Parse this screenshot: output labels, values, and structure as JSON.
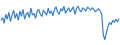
{
  "chart_data": {
    "type": "line",
    "color": "#3a7fc8",
    "tick_labels": false,
    "grid": false,
    "categories": [
      null,
      null,
      null,
      null,
      null,
      null,
      null,
      null,
      null,
      null,
      null,
      null,
      null,
      null,
      null,
      null,
      null,
      null,
      null,
      null,
      null,
      null,
      null,
      null,
      null,
      null,
      null,
      null,
      null,
      null,
      null,
      null,
      null,
      null,
      null,
      null,
      null,
      null,
      null,
      null,
      null,
      null,
      null,
      null,
      null,
      null,
      null,
      null,
      null,
      null,
      null,
      null,
      null,
      null,
      null,
      null,
      null,
      null,
      null,
      null,
      null,
      null,
      null,
      null,
      null,
      null,
      null,
      null,
      null,
      null,
      null,
      null,
      null,
      null,
      null,
      null
    ],
    "values": [
      55,
      62,
      48,
      70,
      58,
      75,
      52,
      68,
      80,
      60,
      72,
      55,
      78,
      65,
      82,
      58,
      70,
      75,
      62,
      85,
      68,
      72,
      60,
      78,
      82,
      70,
      65,
      80,
      74,
      68,
      85,
      72,
      78,
      66,
      82,
      88,
      75,
      70,
      84,
      78,
      90,
      72,
      80,
      86,
      76,
      82,
      88,
      70,
      84,
      90,
      80,
      76,
      86,
      82,
      78,
      88,
      84,
      80,
      86,
      82,
      76,
      80,
      84,
      78,
      70,
      20,
      8,
      25,
      40,
      50,
      45,
      55,
      50,
      58,
      52,
      60
    ],
    "ylim": [
      0,
      100
    ]
  }
}
